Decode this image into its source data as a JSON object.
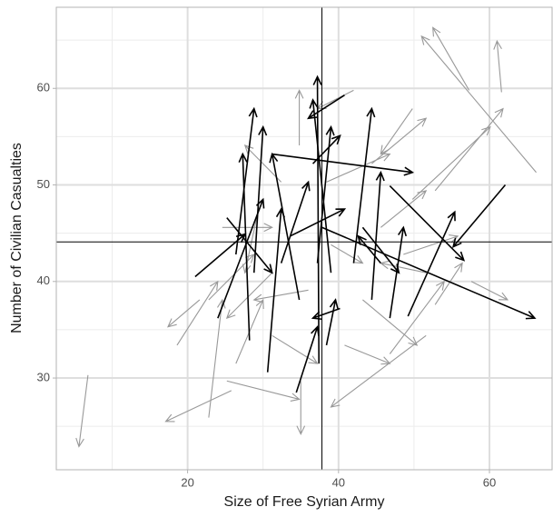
{
  "chart_data": {
    "type": "arrows",
    "x_label": "Size of Free Syrian Army",
    "y_label": "Number of Civilian Casualties",
    "xlim": [
      2.6,
      68.3
    ],
    "ylim": [
      20.5,
      68.4
    ],
    "xticks": [
      20,
      40,
      60
    ],
    "yticks": [
      30,
      40,
      50,
      60
    ],
    "xminor": [
      10,
      30,
      50
    ],
    "yminor": [
      25,
      35,
      45,
      55,
      65
    ],
    "grid": true,
    "vline": 37.8,
    "hline": 44.1,
    "series": [
      {
        "color": "#999999",
        "x": [
          6.8,
          66.2,
          57.3,
          61.6,
          51.6,
          25.8,
          21.6,
          35.0,
          49.8,
          57.6,
          46.8,
          42.0,
          52.8,
          44.4,
          22.8,
          18.6,
          22.8,
          25.2,
          26.4,
          43.2,
          45.6,
          31.2,
          32.4,
          38.4,
          36.0,
          40.8,
          48.6,
          34.8,
          24.6,
          39.0,
          49.8,
          51.6,
          31.2,
          29.4,
          52.8
        ],
        "y": [
          30.3,
          51.3,
          59.8,
          59.6,
          34.4,
          28.7,
          38.1,
          29.7,
          48.5,
          40.0,
          32.5,
          59.8,
          49.4,
          52.2,
          38.1,
          33.4,
          25.9,
          29.7,
          31.5,
          38.1,
          45.6,
          40.9,
          50.3,
          50.3,
          39.1,
          33.4,
          42.8,
          54.1,
          45.6,
          43.8,
          57.9,
          40.9,
          34.4,
          47.5,
          37.6
        ],
        "xend": [
          5.6,
          51.0,
          52.5,
          61.0,
          39.0,
          17.1,
          17.4,
          35.0,
          60.1,
          62.4,
          54.0,
          37.2,
          61.8,
          51.6,
          28.8,
          24.0,
          24.6,
          34.8,
          30.0,
          50.4,
          51.6,
          25.2,
          27.6,
          46.8,
          28.8,
          46.8,
          55.8,
          34.8,
          31.2,
          43.2,
          45.6,
          45.6,
          37.2,
          27.6,
          56.4
        ],
        "yend": [
          22.9,
          65.4,
          66.3,
          64.9,
          27.0,
          25.5,
          35.3,
          24.2,
          56.0,
          38.1,
          40.0,
          57.9,
          57.9,
          56.9,
          42.8,
          40.0,
          38.1,
          27.8,
          38.1,
          33.4,
          49.4,
          36.2,
          54.1,
          53.2,
          38.1,
          31.5,
          44.7,
          59.8,
          45.6,
          41.9,
          53.2,
          41.9,
          31.5,
          40.9,
          41.9
        ]
      },
      {
        "color": "#000000",
        "x": [
          37.8,
          62.1,
          46.8,
          49.2,
          37.4,
          26.4,
          28.2,
          21.0,
          31.2,
          40.8,
          37.2,
          44.4,
          46.8,
          30.6,
          34.8,
          34.4,
          24.0,
          33.6,
          39.0,
          42.0,
          25.2,
          43.2,
          28.8,
          38.4,
          36.6,
          32.4,
          45.6,
          40.2
        ],
        "y": [
          45.6,
          50.0,
          49.9,
          36.4,
          31.5,
          42.8,
          33.9,
          40.5,
          53.2,
          59.3,
          41.9,
          38.1,
          36.2,
          30.6,
          38.1,
          28.5,
          36.2,
          44.7,
          40.9,
          41.9,
          46.6,
          45.6,
          40.9,
          33.4,
          52.2,
          41.9,
          41.9,
          37.2
        ],
        "xend": [
          66.0,
          55.2,
          56.6,
          55.4,
          37.2,
          28.8,
          27.3,
          27.6,
          49.8,
          36.0,
          39.0,
          45.6,
          48.6,
          32.4,
          31.2,
          37.2,
          30.0,
          40.8,
          36.6,
          44.4,
          31.2,
          48.0,
          30.0,
          39.6,
          40.2,
          36.0,
          42.6,
          36.6
        ],
        "yend": [
          36.2,
          43.6,
          42.2,
          47.2,
          61.2,
          57.9,
          53.2,
          44.9,
          51.3,
          56.9,
          56.0,
          51.3,
          45.6,
          47.5,
          53.2,
          35.3,
          48.5,
          47.5,
          58.8,
          57.9,
          40.9,
          40.9,
          56.0,
          38.1,
          55.1,
          50.3,
          44.7,
          36.2
        ]
      }
    ]
  }
}
